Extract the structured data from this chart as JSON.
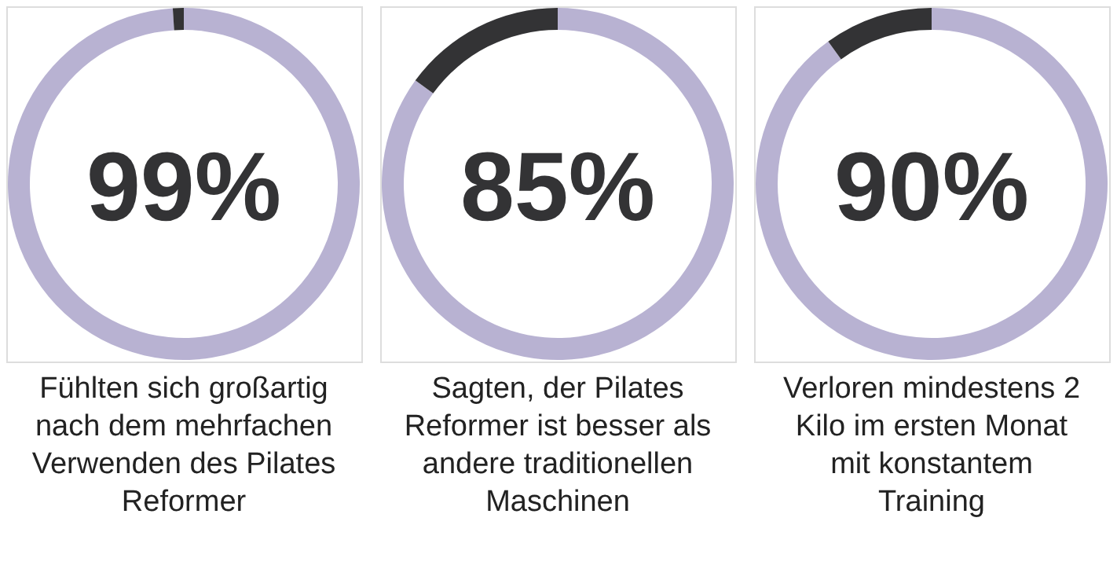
{
  "chart_data": [
    {
      "type": "donut",
      "title": "Fühlten sich großartig\nnach dem mehrfachen\nVerwenden des Pilates\nReformer",
      "categories": [
        null,
        null
      ],
      "values": [
        99,
        1
      ],
      "colors": [
        "#b8b2d2",
        "#333335"
      ],
      "value_labels": [
        "99%",
        null
      ]
    },
    {
      "type": "donut",
      "title": "Sagten, der Pilates\nReformer ist besser als\nandere traditionellen\nMaschinen",
      "categories": [
        null,
        null
      ],
      "values": [
        85,
        15
      ],
      "colors": [
        "#b8b2d2",
        "#333335"
      ],
      "value_labels": [
        "85%",
        null
      ]
    },
    {
      "type": "donut",
      "title": "Verloren mindestens 2\nKilo im ersten Monat\nmit konstantem\nTraining",
      "categories": [
        null,
        null
      ],
      "values": [
        90,
        10
      ],
      "colors": [
        "#b8b2d2",
        "#333335"
      ],
      "value_labels": [
        "90%",
        null
      ]
    }
  ]
}
